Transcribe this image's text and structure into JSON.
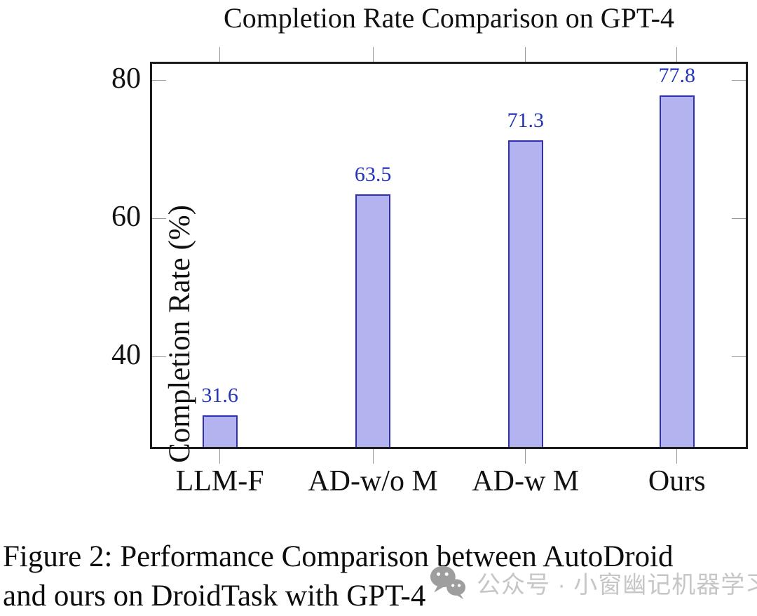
{
  "chart_data": {
    "type": "bar",
    "title": "Completion Rate Comparison on GPT-4",
    "categories": [
      "LLM-F",
      "AD-w/o M",
      "AD-w M",
      "Ours"
    ],
    "values": [
      31.6,
      63.5,
      71.3,
      77.8
    ],
    "value_labels": [
      "31.6",
      "63.5",
      "71.3",
      "77.8"
    ],
    "xlabel": "",
    "ylabel": "Completion Rate (%)",
    "ylim": [
      27,
      82.4
    ],
    "yticks": [
      40,
      60,
      80
    ],
    "grid": false,
    "legend": false,
    "colors": {
      "bar_fill": "#b3b3ef",
      "bar_border": "#2f2fb8",
      "value_label": "#2233bb",
      "axis": "#1c1c1c",
      "tick": "#999999"
    }
  },
  "figure": {
    "caption_line1": "Figure 2: Performance Comparison between AutoDroid",
    "caption_line2": "and ours on DroidTask with GPT-4"
  },
  "watermark": {
    "icon": "wechat-icon",
    "text": "公众号 · 小窗幽记机器学习",
    "color": "#c6c6c6"
  }
}
